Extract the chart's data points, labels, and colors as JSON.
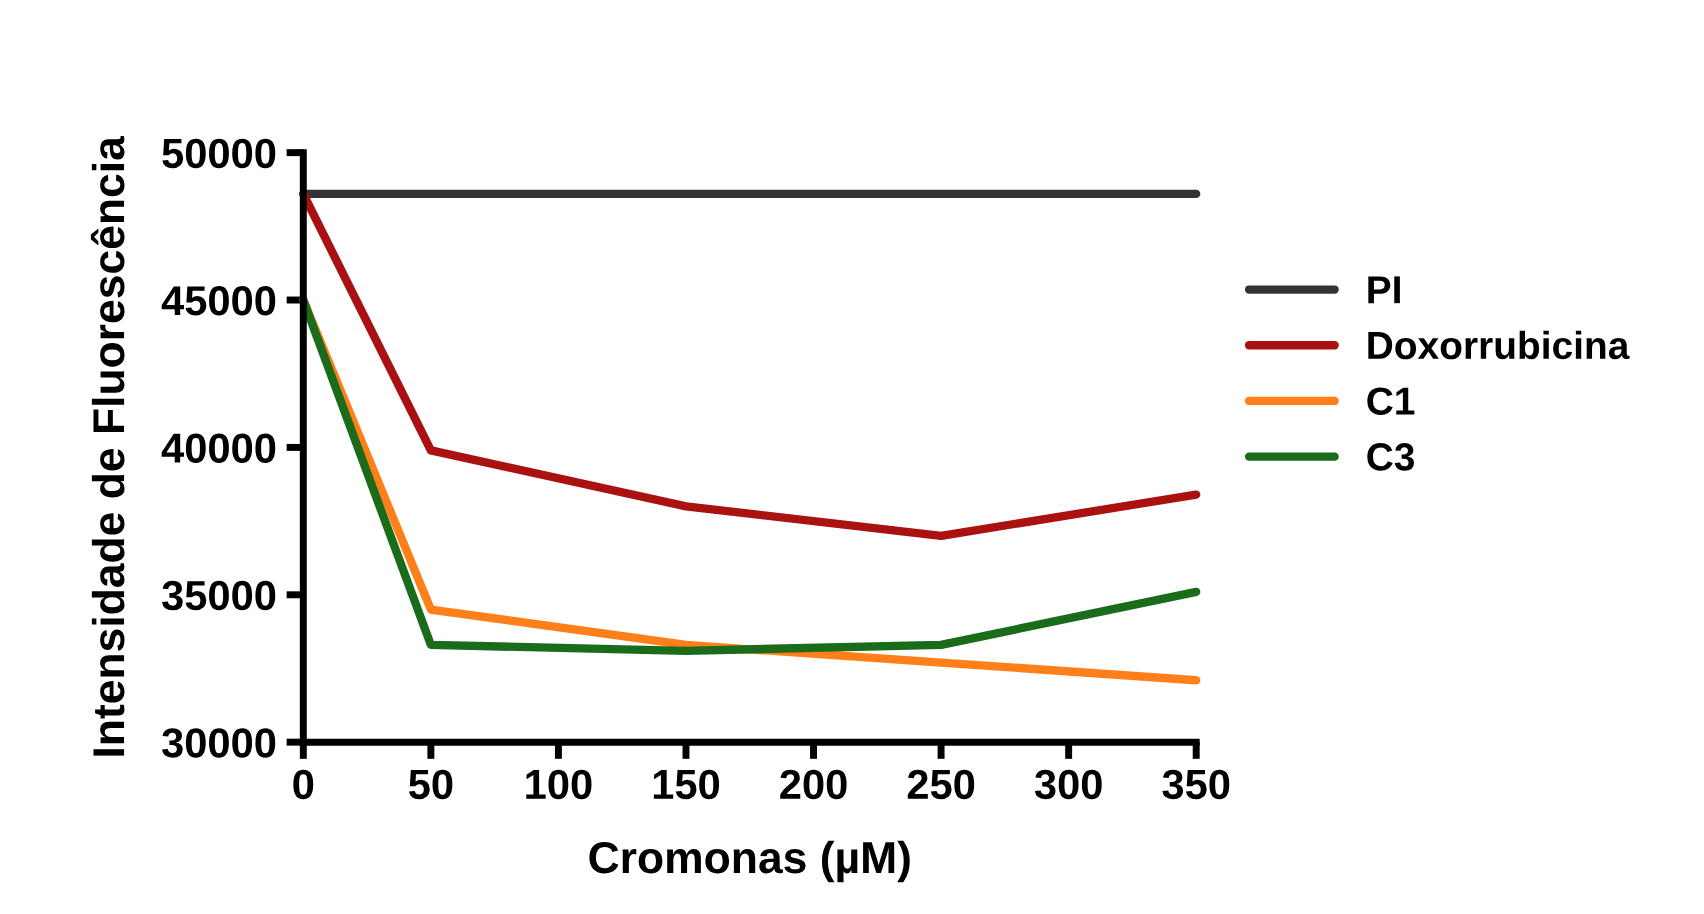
{
  "chart_data": {
    "type": "line",
    "xlabel": "Cromonas (µM)",
    "ylabel": "Intensidade de Fluorescência",
    "x": [
      0,
      50,
      150,
      250,
      350
    ],
    "series": [
      {
        "name": "PI",
        "color": "#333333",
        "values": [
          48600,
          48600,
          48600,
          48600,
          48600
        ]
      },
      {
        "name": "Doxorrubicina",
        "color": "#aa1111",
        "values": [
          48600,
          39900,
          38000,
          37000,
          38400
        ]
      },
      {
        "name": "C1",
        "color": "#ff7f1a",
        "values": [
          45000,
          34500,
          33300,
          32700,
          32100
        ]
      },
      {
        "name": "C3",
        "color": "#1a6b1a",
        "values": [
          45000,
          33300,
          33100,
          33300,
          35100
        ]
      }
    ],
    "xlim": [
      0,
      350
    ],
    "xticks": [
      0,
      50,
      100,
      150,
      200,
      250,
      300,
      350
    ],
    "ylim": [
      30000,
      50000
    ],
    "yticks": [
      30000,
      35000,
      40000,
      45000,
      50000
    ],
    "grid": false,
    "legend": "right",
    "marker": "none",
    "line_style": "solid"
  }
}
